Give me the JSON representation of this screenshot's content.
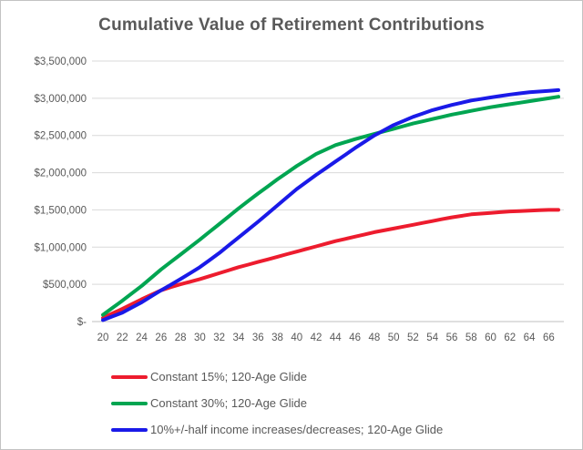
{
  "frame": {
    "background": "#ffffff",
    "border_color": "#c3c3c3",
    "text_color": "#595959",
    "grid_color": "#d9d9d9",
    "axis_color": "#bfbfbf"
  },
  "chart_data": {
    "type": "line",
    "title": "Cumulative Value of Retirement Contributions",
    "xlabel": "",
    "ylabel": "",
    "xlim": [
      20,
      67
    ],
    "ylim": [
      0,
      3500000
    ],
    "grid": true,
    "legend_position": "bottom-left",
    "x": [
      20,
      21,
      22,
      23,
      24,
      25,
      26,
      27,
      28,
      29,
      30,
      31,
      32,
      33,
      34,
      35,
      36,
      37,
      38,
      39,
      40,
      41,
      42,
      43,
      44,
      45,
      46,
      47,
      48,
      49,
      50,
      51,
      52,
      53,
      54,
      55,
      56,
      57,
      58,
      59,
      60,
      61,
      62,
      63,
      64,
      65,
      66,
      67
    ],
    "x_tick_labels": [
      "20",
      "22",
      "24",
      "26",
      "28",
      "30",
      "32",
      "34",
      "36",
      "38",
      "40",
      "42",
      "44",
      "46",
      "48",
      "50",
      "52",
      "54",
      "56",
      "58",
      "60",
      "62",
      "64",
      "66"
    ],
    "x_tick_values": [
      20,
      22,
      24,
      26,
      28,
      30,
      32,
      34,
      36,
      38,
      40,
      42,
      44,
      46,
      48,
      50,
      52,
      54,
      56,
      58,
      60,
      62,
      64,
      66
    ],
    "y_tick_labels": [
      "$-",
      "$500,000",
      "$1,000,000",
      "$1,500,000",
      "$2,000,000",
      "$2,500,000",
      "$3,000,000",
      "$3,500,000"
    ],
    "y_tick_values": [
      0,
      500000,
      1000000,
      1500000,
      2000000,
      2500000,
      3000000,
      3500000
    ],
    "series": [
      {
        "name": "Constant 15%; 120-Age Glide",
        "color": "#ed1c2e",
        "values": [
          50000,
          110000,
          170000,
          235000,
          300000,
          360000,
          420000,
          462000,
          500000,
          535000,
          570000,
          610000,
          650000,
          690000,
          730000,
          765000,
          800000,
          835000,
          870000,
          905000,
          940000,
          975000,
          1010000,
          1045000,
          1080000,
          1110000,
          1140000,
          1170000,
          1200000,
          1225000,
          1250000,
          1275000,
          1300000,
          1325000,
          1350000,
          1375000,
          1400000,
          1420000,
          1440000,
          1450000,
          1460000,
          1470000,
          1480000,
          1485000,
          1490000,
          1495000,
          1500000,
          1500000
        ]
      },
      {
        "name": "Constant 30%; 120-Age Glide",
        "color": "#00a551",
        "values": [
          90000,
          185000,
          280000,
          380000,
          480000,
          590000,
          700000,
          800000,
          900000,
          1000000,
          1100000,
          1205000,
          1310000,
          1415000,
          1520000,
          1620000,
          1720000,
          1815000,
          1910000,
          2000000,
          2090000,
          2170000,
          2250000,
          2310000,
          2370000,
          2410000,
          2450000,
          2485000,
          2520000,
          2555000,
          2590000,
          2625000,
          2660000,
          2690000,
          2720000,
          2750000,
          2780000,
          2805000,
          2830000,
          2855000,
          2880000,
          2900000,
          2920000,
          2940000,
          2960000,
          2980000,
          3000000,
          3020000
        ]
      },
      {
        "name": "10%+/-half income increases/decreases; 120-Age Glide",
        "color": "#1a1ae8",
        "values": [
          20000,
          70000,
          120000,
          190000,
          260000,
          340000,
          420000,
          495000,
          570000,
          650000,
          730000,
          825000,
          920000,
          1025000,
          1130000,
          1235000,
          1340000,
          1450000,
          1560000,
          1670000,
          1780000,
          1875000,
          1970000,
          2060000,
          2150000,
          2240000,
          2330000,
          2415000,
          2500000,
          2570000,
          2640000,
          2695000,
          2750000,
          2795000,
          2840000,
          2875000,
          2910000,
          2940000,
          2970000,
          2990000,
          3010000,
          3030000,
          3050000,
          3065000,
          3080000,
          3090000,
          3100000,
          3110000
        ]
      }
    ]
  }
}
